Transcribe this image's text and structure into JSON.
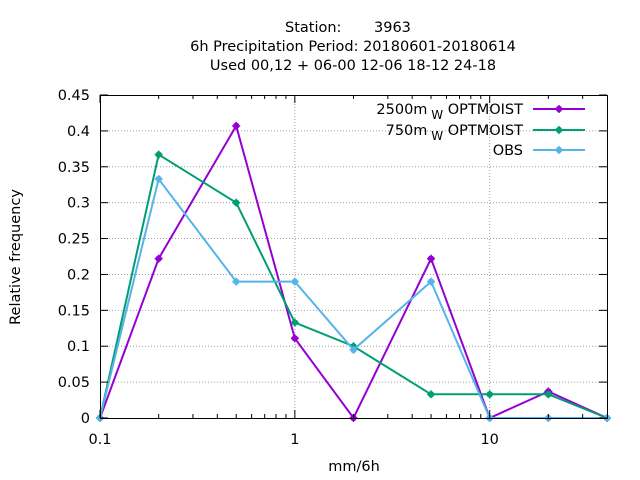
{
  "chart_data": {
    "type": "line",
    "title": {
      "station_label": "Station:",
      "station_id": "3963",
      "line2": "6h Precipitation  Period: 20180601-20180614",
      "line3": "Used  00,12  + 06-00 12-06 18-12 24-18"
    },
    "xlabel": "mm/6h",
    "ylabel": "Relative frequency",
    "x_scale": "log",
    "xlim": [
      0.1,
      40
    ],
    "ylim": [
      0,
      0.45
    ],
    "x_ticks": [
      {
        "value": 0.1,
        "label": "0.1"
      },
      {
        "value": 1,
        "label": "1"
      },
      {
        "value": 10,
        "label": "10"
      }
    ],
    "y_ticks": [
      {
        "value": 0,
        "label": "0"
      },
      {
        "value": 0.05,
        "label": "0.05"
      },
      {
        "value": 0.1,
        "label": "0.1"
      },
      {
        "value": 0.15,
        "label": "0.15"
      },
      {
        "value": 0.2,
        "label": "0.2"
      },
      {
        "value": 0.25,
        "label": "0.25"
      },
      {
        "value": 0.3,
        "label": "0.3"
      },
      {
        "value": 0.35,
        "label": "0.35"
      },
      {
        "value": 0.4,
        "label": "0.4"
      },
      {
        "value": 0.45,
        "label": "0.45"
      }
    ],
    "grid": true,
    "legend_position": "top-right",
    "x": [
      0.1,
      0.2,
      0.5,
      1,
      2,
      5,
      10,
      20,
      40
    ],
    "series": [
      {
        "name_main": "2500m",
        "name_sub": "W",
        "name_tail": "OPTMOIST",
        "color": "#9400d3",
        "values": [
          0,
          0.222,
          0.407,
          0.111,
          0,
          0.222,
          0,
          0.037,
          0
        ]
      },
      {
        "name_main": "750m",
        "name_sub": "W",
        "name_tail": "OPTMOIST",
        "color": "#009e73",
        "values": [
          0,
          0.367,
          0.3,
          0.133,
          0.1,
          0.033,
          0.033,
          0.033,
          0
        ]
      },
      {
        "name_main": "OBS",
        "name_sub": "",
        "name_tail": "",
        "color": "#56b4e9",
        "values": [
          0,
          0.333,
          0.19,
          0.19,
          0.095,
          0.19,
          0,
          0,
          0
        ]
      }
    ]
  }
}
